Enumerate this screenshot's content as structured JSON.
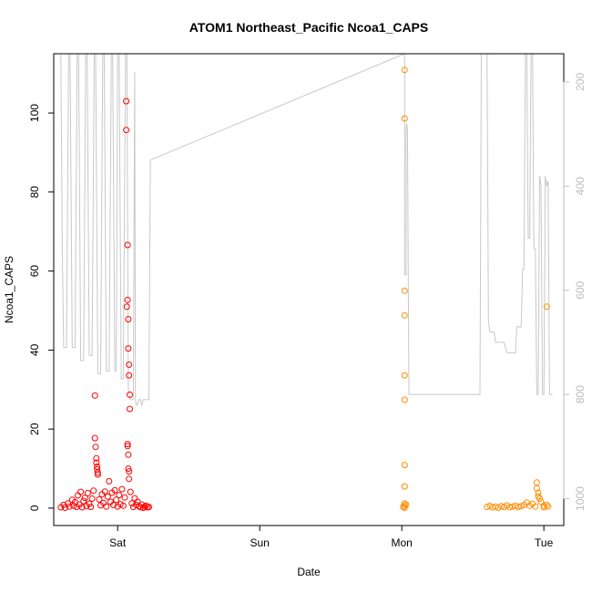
{
  "chart_data": {
    "type": "scatter",
    "title": "ATOM1 Northeast_Pacific Ncoa1_CAPS",
    "xlabel": "Date",
    "ylabel": "Ncoa1_CAPS",
    "x_unit": "days",
    "x_ticks": [
      {
        "label": "Sat",
        "value": 1
      },
      {
        "label": "Sun",
        "value": 2
      },
      {
        "label": "Mon",
        "value": 3
      },
      {
        "label": "Tue",
        "value": 4
      }
    ],
    "xlim": [
      0.55,
      4.14
    ],
    "ylim": [
      -4.4,
      115
    ],
    "y_ticks": [
      0,
      20,
      40,
      60,
      80,
      100
    ],
    "y2_ticks": [
      200,
      400,
      600,
      800,
      1000
    ],
    "y2lim": [
      1051.5,
      146
    ],
    "y2_reversed": true,
    "grid": false,
    "colors": {
      "series1": "#ff0000",
      "series2": "#ff8c00",
      "depth_line": "#c8c8c8"
    },
    "series": [
      {
        "color": "#ff0000",
        "points": [
          [
            0.6,
            0.2
          ],
          [
            0.62,
            0.8
          ],
          [
            0.63,
            0.1
          ],
          [
            0.65,
            1.2
          ],
          [
            0.66,
            0.4
          ],
          [
            0.68,
            2.1
          ],
          [
            0.69,
            0.6
          ],
          [
            0.7,
            1.5
          ],
          [
            0.71,
            0.3
          ],
          [
            0.72,
            3.2
          ],
          [
            0.73,
            0.9
          ],
          [
            0.74,
            4.1
          ],
          [
            0.75,
            0.2
          ],
          [
            0.76,
            1.8
          ],
          [
            0.77,
            2.6
          ],
          [
            0.78,
            0.5
          ],
          [
            0.79,
            3.8
          ],
          [
            0.8,
            1.1
          ],
          [
            0.81,
            0.3
          ],
          [
            0.82,
            2.4
          ],
          [
            0.83,
            4.4
          ],
          [
            0.84,
            28.5
          ],
          [
            0.84,
            17.7
          ],
          [
            0.845,
            15.5
          ],
          [
            0.85,
            12.6
          ],
          [
            0.85,
            11.5
          ],
          [
            0.855,
            10.5
          ],
          [
            0.855,
            9.8
          ],
          [
            0.86,
            9.0
          ],
          [
            0.86,
            8.5
          ],
          [
            0.87,
            2.2
          ],
          [
            0.88,
            0.7
          ],
          [
            0.89,
            3.5
          ],
          [
            0.9,
            1.3
          ],
          [
            0.91,
            4.2
          ],
          [
            0.92,
            0.4
          ],
          [
            0.93,
            2.9
          ],
          [
            0.94,
            6.8
          ],
          [
            0.95,
            1.6
          ],
          [
            0.96,
            3.9
          ],
          [
            0.97,
            0.8
          ],
          [
            0.98,
            4.5
          ],
          [
            0.99,
            2.1
          ],
          [
            1.0,
            0.4
          ],
          [
            1.01,
            3.3
          ],
          [
            1.02,
            1.0
          ],
          [
            1.03,
            4.8
          ],
          [
            1.04,
            0.6
          ],
          [
            1.05,
            2.7
          ],
          [
            1.06,
            103.0
          ],
          [
            1.06,
            95.7
          ],
          [
            1.065,
            51.0
          ],
          [
            1.07,
            66.6
          ],
          [
            1.07,
            52.7
          ],
          [
            1.075,
            47.8
          ],
          [
            1.075,
            40.4
          ],
          [
            1.08,
            36.3
          ],
          [
            1.08,
            33.6
          ],
          [
            1.085,
            28.7
          ],
          [
            1.085,
            25.1
          ],
          [
            1.07,
            16.2
          ],
          [
            1.07,
            15.7
          ],
          [
            1.075,
            13.5
          ],
          [
            1.075,
            10.0
          ],
          [
            1.08,
            9.3
          ],
          [
            1.08,
            7.4
          ],
          [
            1.09,
            4.1
          ],
          [
            1.1,
            1.2
          ],
          [
            1.11,
            0.3
          ],
          [
            1.12,
            2.5
          ],
          [
            1.13,
            0.8
          ],
          [
            1.14,
            1.6
          ],
          [
            1.15,
            0.5
          ],
          [
            1.16,
            0.2
          ],
          [
            1.17,
            0.9
          ],
          [
            1.18,
            0.1
          ],
          [
            1.19,
            0.4
          ],
          [
            1.2,
            0.6
          ],
          [
            1.21,
            0.2
          ],
          [
            1.22,
            0.3
          ]
        ]
      },
      {
        "color": "#ff8c00",
        "points": [
          [
            3.02,
            110.9
          ],
          [
            3.02,
            98.6
          ],
          [
            3.02,
            55.0
          ],
          [
            3.02,
            48.8
          ],
          [
            3.02,
            33.6
          ],
          [
            3.02,
            27.4
          ],
          [
            3.02,
            10.9
          ],
          [
            3.02,
            5.5
          ],
          [
            3.02,
            1.2
          ],
          [
            3.02,
            0.6
          ],
          [
            3.01,
            0.3
          ],
          [
            3.03,
            0.9
          ],
          [
            3.02,
            0.1
          ],
          [
            3.6,
            0.3
          ],
          [
            3.62,
            0.6
          ],
          [
            3.64,
            0.2
          ],
          [
            3.66,
            0.4
          ],
          [
            3.68,
            0.1
          ],
          [
            3.7,
            0.5
          ],
          [
            3.72,
            0.3
          ],
          [
            3.74,
            0.7
          ],
          [
            3.76,
            0.2
          ],
          [
            3.78,
            0.4
          ],
          [
            3.8,
            0.6
          ],
          [
            3.82,
            0.3
          ],
          [
            3.84,
            0.5
          ],
          [
            3.86,
            0.8
          ],
          [
            3.88,
            1.4
          ],
          [
            3.9,
            0.6
          ],
          [
            3.92,
            1.1
          ],
          [
            3.94,
            0.4
          ],
          [
            3.95,
            6.5
          ],
          [
            3.95,
            5.0
          ],
          [
            3.96,
            3.9
          ],
          [
            3.96,
            3.0
          ],
          [
            3.97,
            2.4
          ],
          [
            3.98,
            1.6
          ],
          [
            4.0,
            0.6
          ],
          [
            4.0,
            0.2
          ],
          [
            4.02,
            0.8
          ],
          [
            4.03,
            0.4
          ],
          [
            4.02,
            51.0
          ]
        ]
      }
    ],
    "depth_line": [
      [
        0.6,
        146
      ],
      [
        0.61,
        520
      ],
      [
        0.62,
        710
      ],
      [
        0.64,
        710
      ],
      [
        0.655,
        146
      ],
      [
        0.665,
        146
      ],
      [
        0.68,
        710
      ],
      [
        0.7,
        710
      ],
      [
        0.715,
        146
      ],
      [
        0.725,
        146
      ],
      [
        0.74,
        735
      ],
      [
        0.76,
        735
      ],
      [
        0.775,
        146
      ],
      [
        0.785,
        146
      ],
      [
        0.8,
        725
      ],
      [
        0.82,
        725
      ],
      [
        0.835,
        146
      ],
      [
        0.845,
        146
      ],
      [
        0.86,
        760
      ],
      [
        0.88,
        760
      ],
      [
        0.895,
        146
      ],
      [
        0.905,
        146
      ],
      [
        0.92,
        755
      ],
      [
        0.94,
        755
      ],
      [
        0.955,
        146
      ],
      [
        0.965,
        146
      ],
      [
        0.98,
        755
      ],
      [
        0.99,
        755
      ],
      [
        1.0,
        146
      ],
      [
        1.01,
        146
      ],
      [
        1.025,
        770
      ],
      [
        1.04,
        770
      ],
      [
        1.055,
        146
      ],
      [
        1.065,
        146
      ],
      [
        1.075,
        790
      ],
      [
        1.09,
        810
      ],
      [
        1.1,
        810
      ],
      [
        1.11,
        810
      ],
      [
        1.12,
        180
      ],
      [
        1.125,
        810
      ],
      [
        1.13,
        820
      ],
      [
        1.14,
        820
      ],
      [
        1.15,
        810
      ],
      [
        1.16,
        810
      ],
      [
        1.17,
        820
      ],
      [
        1.18,
        810
      ],
      [
        1.2,
        810
      ],
      [
        1.21,
        810
      ],
      [
        1.22,
        810
      ],
      [
        1.23,
        350
      ],
      [
        3.02,
        146
      ],
      [
        3.02,
        570
      ],
      [
        3.03,
        570
      ],
      [
        3.03,
        290
      ],
      [
        3.035,
        280
      ],
      [
        3.04,
        290
      ],
      [
        3.05,
        800
      ],
      [
        3.55,
        800
      ],
      [
        3.56,
        146
      ],
      [
        3.6,
        146
      ],
      [
        3.61,
        660
      ],
      [
        3.62,
        680
      ],
      [
        3.65,
        680
      ],
      [
        3.66,
        700
      ],
      [
        3.72,
        700
      ],
      [
        3.74,
        720
      ],
      [
        3.8,
        720
      ],
      [
        3.81,
        670
      ],
      [
        3.84,
        670
      ],
      [
        3.85,
        560
      ],
      [
        3.86,
        560
      ],
      [
        3.87,
        146
      ],
      [
        3.88,
        146
      ],
      [
        3.89,
        500
      ],
      [
        3.9,
        500
      ],
      [
        3.91,
        146
      ],
      [
        3.92,
        146
      ],
      [
        3.93,
        520
      ],
      [
        3.94,
        520
      ],
      [
        3.95,
        800
      ],
      [
        3.96,
        800
      ],
      [
        3.97,
        380
      ],
      [
        3.98,
        400
      ],
      [
        3.99,
        800
      ],
      [
        4.0,
        800
      ],
      [
        4.01,
        380
      ],
      [
        4.02,
        400
      ],
      [
        4.03,
        390
      ],
      [
        4.04,
        800
      ],
      [
        4.05,
        800
      ],
      [
        4.06,
        800
      ]
    ]
  }
}
